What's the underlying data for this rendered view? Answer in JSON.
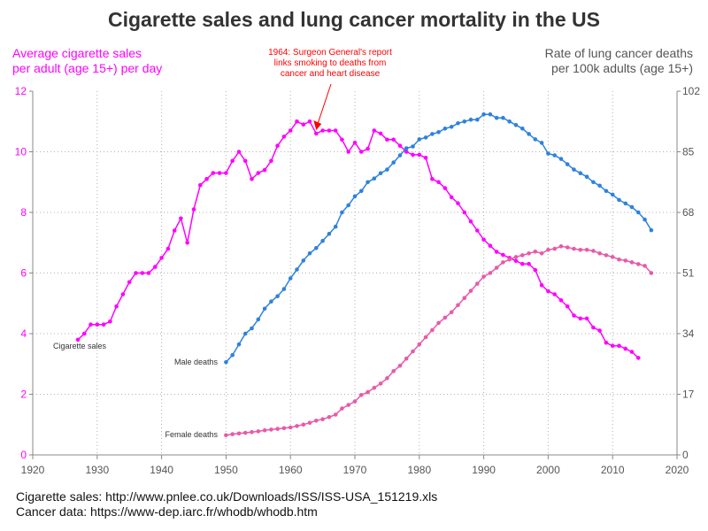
{
  "chart_data": {
    "type": "line",
    "title": "Cigarette sales and lung cancer mortality in the US",
    "y_left_label": [
      "Average cigarette sales",
      "per adult (age 15+) per day"
    ],
    "y_right_label": [
      "Rate of lung cancer deaths",
      "per 100k adults (age 15+)"
    ],
    "xlim": [
      1920,
      2020
    ],
    "x_ticks": [
      1920,
      1930,
      1940,
      1950,
      1960,
      1970,
      1980,
      1990,
      2000,
      2010,
      2020
    ],
    "ylim_left": [
      0,
      12
    ],
    "y_ticks_left": [
      0,
      2,
      4,
      6,
      8,
      10,
      12
    ],
    "ylim_right": [
      0,
      102
    ],
    "y_ticks_right": [
      0,
      17,
      34,
      51,
      68,
      85,
      102
    ],
    "grid": true,
    "annotation": {
      "text": [
        "1964: Surgeon General's report",
        "links smoking to deaths from",
        "cancer and heart disease"
      ],
      "x": 1964,
      "y": 10.6,
      "color": "#ff0000"
    },
    "series": [
      {
        "name": "Cigarette sales",
        "axis": "left",
        "color": "#ff00ff",
        "x": [
          1927,
          1928,
          1929,
          1930,
          1931,
          1932,
          1933,
          1934,
          1935,
          1936,
          1937,
          1938,
          1939,
          1940,
          1941,
          1942,
          1943,
          1944,
          1945,
          1946,
          1947,
          1948,
          1949,
          1950,
          1951,
          1952,
          1953,
          1954,
          1955,
          1956,
          1957,
          1958,
          1959,
          1960,
          1961,
          1962,
          1963,
          1964,
          1965,
          1966,
          1967,
          1968,
          1969,
          1970,
          1971,
          1972,
          1973,
          1974,
          1975,
          1976,
          1977,
          1978,
          1979,
          1980,
          1981,
          1982,
          1983,
          1984,
          1985,
          1986,
          1987,
          1988,
          1989,
          1990,
          1991,
          1992,
          1993,
          1994,
          1995,
          1996,
          1997,
          1998,
          1999,
          2000,
          2001,
          2002,
          2003,
          2004,
          2005,
          2006,
          2007,
          2008,
          2009,
          2010,
          2011,
          2012,
          2013,
          2014
        ],
        "values": [
          3.8,
          4.0,
          4.3,
          4.3,
          4.3,
          4.4,
          4.9,
          5.3,
          5.7,
          6.0,
          6.0,
          6.0,
          6.2,
          6.5,
          6.8,
          7.4,
          7.8,
          7.0,
          8.1,
          8.9,
          9.1,
          9.3,
          9.3,
          9.3,
          9.7,
          10.0,
          9.7,
          9.1,
          9.3,
          9.4,
          9.7,
          10.2,
          10.5,
          10.7,
          11.0,
          10.9,
          11.0,
          10.6,
          10.7,
          10.7,
          10.7,
          10.4,
          10.0,
          10.3,
          10.0,
          10.1,
          10.7,
          10.6,
          10.4,
          10.4,
          10.2,
          10.0,
          9.9,
          9.9,
          9.8,
          9.1,
          9.0,
          8.8,
          8.5,
          8.3,
          8.0,
          7.7,
          7.4,
          7.1,
          6.9,
          6.7,
          6.6,
          6.5,
          6.4,
          6.3,
          6.3,
          6.1,
          5.6,
          5.4,
          5.3,
          5.1,
          4.9,
          4.6,
          4.5,
          4.5,
          4.2,
          4.1,
          3.7,
          3.6,
          3.6,
          3.5,
          3.4,
          3.2
        ]
      },
      {
        "name": "Male deaths",
        "axis": "right",
        "color": "#2e82dc",
        "x": [
          1950,
          1951,
          1952,
          1953,
          1954,
          1955,
          1956,
          1957,
          1958,
          1959,
          1960,
          1961,
          1962,
          1963,
          1964,
          1965,
          1966,
          1967,
          1968,
          1969,
          1970,
          1971,
          1972,
          1973,
          1974,
          1975,
          1976,
          1977,
          1978,
          1979,
          1980,
          1981,
          1982,
          1983,
          1984,
          1985,
          1986,
          1987,
          1988,
          1989,
          1990,
          1991,
          1992,
          1993,
          1994,
          1995,
          1996,
          1997,
          1998,
          1999,
          2000,
          2001,
          2002,
          2003,
          2004,
          2005,
          2006,
          2007,
          2008,
          2009,
          2010,
          2011,
          2012,
          2013,
          2014,
          2015,
          2016
        ],
        "values": [
          26,
          28,
          31,
          34,
          35.5,
          38,
          41,
          43,
          44.5,
          46.5,
          49.5,
          52,
          54.5,
          56.5,
          58,
          60,
          62,
          64,
          68,
          70,
          72.5,
          74,
          76.5,
          77.5,
          79,
          80,
          82,
          84,
          86,
          86.5,
          88.5,
          89,
          90,
          90.5,
          91.5,
          92,
          93,
          93.5,
          94,
          94,
          95.5,
          95.5,
          94.5,
          94.5,
          93.5,
          92.5,
          91.5,
          90,
          88.5,
          87.5,
          84.5,
          84,
          83,
          81.5,
          80,
          79,
          78,
          76.5,
          75.5,
          74,
          73,
          71.5,
          70.5,
          69.5,
          68,
          66,
          63
        ]
      },
      {
        "name": "Female deaths",
        "axis": "right",
        "color": "#e75aaa",
        "x": [
          1950,
          1951,
          1952,
          1953,
          1954,
          1955,
          1956,
          1957,
          1958,
          1959,
          1960,
          1961,
          1962,
          1963,
          1964,
          1965,
          1966,
          1967,
          1968,
          1969,
          1970,
          1971,
          1972,
          1973,
          1974,
          1975,
          1976,
          1977,
          1978,
          1979,
          1980,
          1981,
          1982,
          1983,
          1984,
          1985,
          1986,
          1987,
          1988,
          1989,
          1990,
          1991,
          1992,
          1993,
          1994,
          1995,
          1996,
          1997,
          1998,
          1999,
          2000,
          2001,
          2002,
          2003,
          2004,
          2005,
          2006,
          2007,
          2008,
          2009,
          2010,
          2011,
          2012,
          2013,
          2014,
          2015,
          2016
        ],
        "values": [
          5.5,
          5.8,
          6,
          6.2,
          6.4,
          6.6,
          6.9,
          7.1,
          7.3,
          7.5,
          7.7,
          8.1,
          8.5,
          9,
          9.6,
          10,
          10.6,
          11.3,
          13,
          14,
          15,
          16.8,
          17.6,
          18.8,
          20,
          21.5,
          23.5,
          25,
          27,
          29,
          31,
          33,
          35,
          37,
          38.5,
          40,
          42,
          44,
          46,
          48,
          50,
          51,
          52.5,
          54,
          54.8,
          55.5,
          56,
          56.5,
          57,
          56.5,
          57.5,
          57.8,
          58.5,
          58.2,
          57.8,
          57.5,
          57.5,
          57.2,
          56.5,
          56,
          55.5,
          54.8,
          54.5,
          54,
          53.5,
          53,
          51
        ]
      }
    ],
    "series_labels": [
      "Cigarette sales",
      "Male deaths",
      "Female deaths"
    ]
  },
  "footer": {
    "line1": "Cigarette sales: http://www.pnlee.co.uk/Downloads/ISS/ISS-USA_151219.xls",
    "line2": "Cancer data: https://www-dep.iarc.fr/whodb/whodb.htm"
  }
}
